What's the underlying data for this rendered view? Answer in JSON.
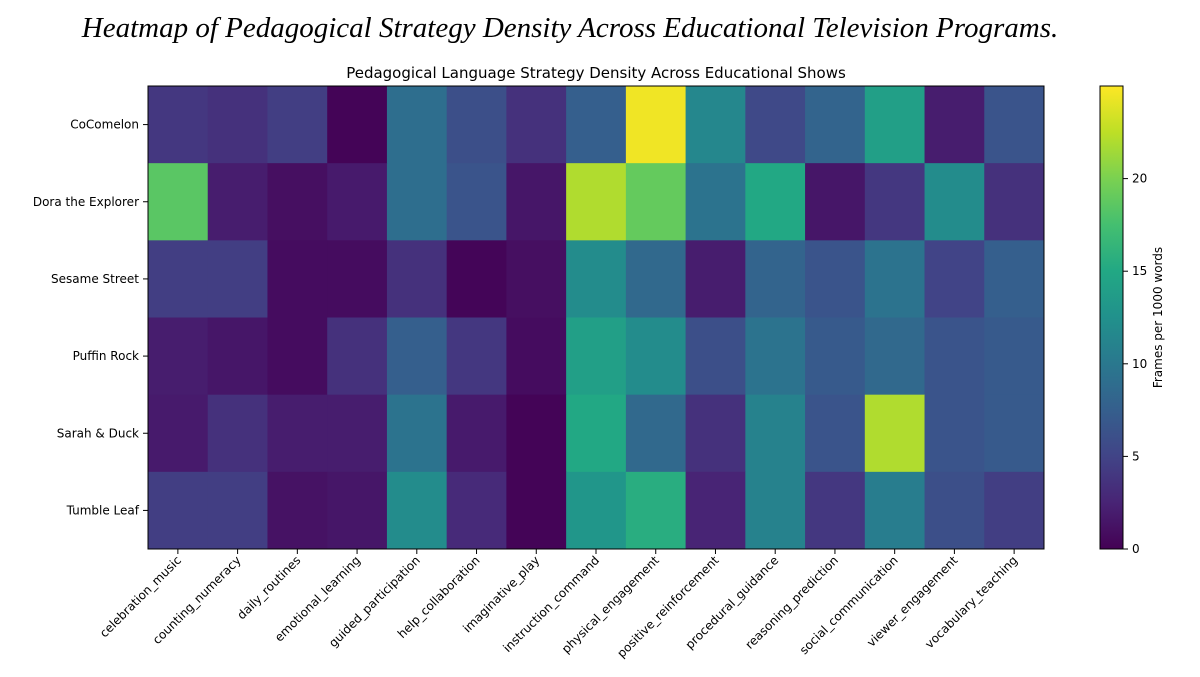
{
  "caption": "Heatmap of Pedagogical Strategy Density Across Educational Television Programs.",
  "chart_data": {
    "type": "heatmap",
    "title": "Pedagogical Language Strategy Density Across Educational Shows",
    "rows": [
      "CoComelon",
      "Dora the Explorer",
      "Sesame Street",
      "Puffin Rock",
      "Sarah & Duck",
      "Tumble Leaf"
    ],
    "columns": [
      "celebration_music",
      "counting_numeracy",
      "daily_routines",
      "emotional_learning",
      "guided_participation",
      "help_collaboration",
      "imaginative_play",
      "instruction_command",
      "physical_engagement",
      "positive_reinforcement",
      "procedural_guidance",
      "reasoning_prediction",
      "social_communication",
      "viewer_engagement",
      "vocabulary_teaching"
    ],
    "values": [
      [
        4.0,
        3.5,
        4.5,
        0.2,
        9.0,
        6.0,
        3.5,
        7.5,
        24.5,
        11.5,
        5.5,
        8.0,
        14.0,
        2.0,
        6.5
      ],
      [
        18.5,
        2.0,
        1.0,
        1.8,
        9.0,
        6.5,
        1.5,
        22.0,
        19.0,
        9.5,
        15.0,
        1.5,
        4.0,
        12.0,
        3.5
      ],
      [
        4.5,
        4.5,
        0.8,
        0.8,
        3.5,
        0.3,
        1.0,
        12.0,
        8.5,
        2.0,
        8.0,
        6.5,
        9.5,
        5.0,
        7.5
      ],
      [
        2.0,
        1.5,
        0.8,
        3.5,
        7.5,
        4.0,
        0.8,
        14.0,
        12.0,
        6.0,
        9.5,
        7.0,
        8.5,
        6.5,
        7.0
      ],
      [
        1.8,
        3.5,
        2.0,
        2.0,
        9.5,
        1.8,
        0.2,
        15.0,
        8.5,
        3.5,
        11.0,
        6.5,
        22.0,
        6.5,
        7.0
      ],
      [
        4.5,
        4.5,
        1.2,
        1.5,
        12.0,
        3.0,
        0.2,
        13.0,
        15.5,
        2.5,
        11.0,
        4.0,
        10.5,
        6.0,
        4.5
      ]
    ],
    "colormap": "viridis",
    "colorbar": {
      "label": "Frames per 1000 words",
      "range": [
        0,
        25
      ],
      "ticks": [
        0,
        5,
        10,
        15,
        20
      ]
    },
    "grid": false
  }
}
